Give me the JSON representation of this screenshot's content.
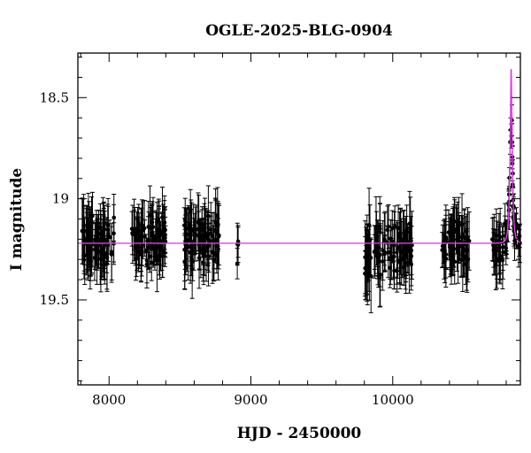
{
  "chart_data": {
    "type": "scatter",
    "title": "OGLE-2025-BLG-0904",
    "xlabel": "HJD - 2450000",
    "ylabel": "I magnitude",
    "xlim": [
      7780,
      10900
    ],
    "ylim": [
      19.92,
      18.28
    ],
    "y_inverted": true,
    "x_major_ticks": [
      8000,
      9000,
      10000
    ],
    "x_minor_step": 200,
    "y_major_ticks": [
      18.5,
      19,
      19.5
    ],
    "y_tick_labels": [
      "18.5",
      "19",
      "19.5"
    ],
    "y_minor_step": 0.1,
    "grid": false,
    "legend": "none",
    "colors": {
      "points": "#000000",
      "model": "#e040e6"
    },
    "baseline_mag": 19.22,
    "seasons": [
      {
        "start": 7800,
        "end": 8040,
        "n": 80,
        "mean_mag": 19.22,
        "scatter": 0.08,
        "err": 0.12
      },
      {
        "start": 8160,
        "end": 8400,
        "n": 80,
        "mean_mag": 19.2,
        "scatter": 0.07,
        "err": 0.11
      },
      {
        "start": 8530,
        "end": 8780,
        "n": 85,
        "mean_mag": 19.2,
        "scatter": 0.08,
        "err": 0.12
      },
      {
        "start": 8890,
        "end": 8920,
        "n": 4,
        "mean_mag": 19.25,
        "scatter": 0.05,
        "err": 0.08
      },
      {
        "start": 9800,
        "end": 9850,
        "n": 20,
        "mean_mag": 19.28,
        "scatter": 0.1,
        "err": 0.14
      },
      {
        "start": 9860,
        "end": 10140,
        "n": 80,
        "mean_mag": 19.24,
        "scatter": 0.08,
        "err": 0.12
      },
      {
        "start": 10340,
        "end": 10540,
        "n": 60,
        "mean_mag": 19.22,
        "scatter": 0.08,
        "err": 0.12
      },
      {
        "start": 10700,
        "end": 10780,
        "n": 25,
        "mean_mag": 19.24,
        "scatter": 0.06,
        "err": 0.11
      }
    ],
    "event": {
      "t0": 10835,
      "u0": 0.32,
      "tE": 16,
      "fs": 0.55,
      "x_start": 10790,
      "x_end": 10900,
      "n": 40,
      "err": 0.07
    },
    "highlighted_points": [
      {
        "x": 10832,
        "y": 18.66
      },
      {
        "x": 10836,
        "y": 18.69
      },
      {
        "x": 10828,
        "y": 18.72
      }
    ]
  }
}
